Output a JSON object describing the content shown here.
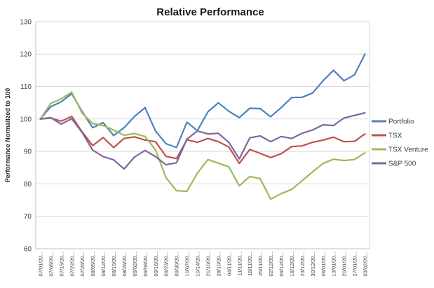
{
  "chart_data": {
    "type": "line",
    "title": "Relative Performance",
    "ylabel": "Performance Normalized to 100",
    "ylim": [
      60,
      130
    ],
    "ytick_step": 10,
    "grid": true,
    "legend_position": "right",
    "axis_color": "#bfbfbf",
    "gridline_color": "#d9d9d9",
    "categories": [
      "07/01/20...",
      "07/08/20...",
      "07/15/20...",
      "07/22/20...",
      "07/29/20...",
      "08/05/20...",
      "08/12/20...",
      "08/19/20...",
      "08/26/20...",
      "09/02/20...",
      "09/09/20...",
      "09/16/20...",
      "09/23/20...",
      "09/30/20...",
      "10/07/20...",
      "10/14/20...",
      "21/10/20...",
      "28/10/20...",
      "04/11/20...",
      "11/11/20...",
      "18/11/20...",
      "25/11/20...",
      "02/12/20...",
      "09/12/20...",
      "16/12/20...",
      "23/12/20...",
      "30/12/20...",
      "06/01/20...",
      "13/01/20...",
      "20/01/20...",
      "27/01/20...",
      "03/02/20..."
    ],
    "series": [
      {
        "name": "Portfolio",
        "color": "#4F81BD",
        "values": [
          100,
          103.8,
          105.3,
          107.8,
          102.3,
          97.3,
          98.9,
          94.9,
          97.3,
          100.8,
          103.5,
          96.3,
          92.4,
          91.2,
          99.0,
          96.4,
          102.2,
          105.0,
          102.4,
          100.4,
          103.3,
          103.2,
          100.7,
          103.5,
          106.6,
          106.7,
          108.0,
          111.8,
          115.0,
          111.8,
          113.6,
          120.0
        ]
      },
      {
        "name": "TSX",
        "color": "#C0504D",
        "values": [
          100,
          100.3,
          99.3,
          100.8,
          96.0,
          91.8,
          94.3,
          91.2,
          94.0,
          94.5,
          93.5,
          93.0,
          88.5,
          87.8,
          93.6,
          92.8,
          94.0,
          93.0,
          91.4,
          86.3,
          90.6,
          89.4,
          88.1,
          89.3,
          91.5,
          91.7,
          92.8,
          93.5,
          94.4,
          93.0,
          93.1,
          95.4
        ]
      },
      {
        "name": "TSX Venture",
        "color": "#9BBB59",
        "values": [
          100,
          104.8,
          106.2,
          108.3,
          101.8,
          98.6,
          98.0,
          96.6,
          95.0,
          95.5,
          94.6,
          90.5,
          81.9,
          77.9,
          77.7,
          83.3,
          87.5,
          86.4,
          85.3,
          79.4,
          82.3,
          81.6,
          75.3,
          77.0,
          78.3,
          81.0,
          83.7,
          86.3,
          87.6,
          87.2,
          87.5,
          89.6
        ]
      },
      {
        "name": "S&P 500",
        "color": "#8064A2",
        "values": [
          100,
          100.4,
          98.4,
          100.1,
          95.8,
          90.4,
          88.4,
          87.4,
          84.6,
          88.3,
          90.3,
          88.4,
          85.9,
          86.5,
          93.8,
          96.3,
          95.4,
          95.6,
          92.8,
          87.7,
          94.2,
          94.8,
          93.0,
          94.6,
          94.0,
          95.6,
          96.6,
          98.2,
          98.0,
          100.3,
          101.1,
          101.9
        ]
      }
    ]
  }
}
